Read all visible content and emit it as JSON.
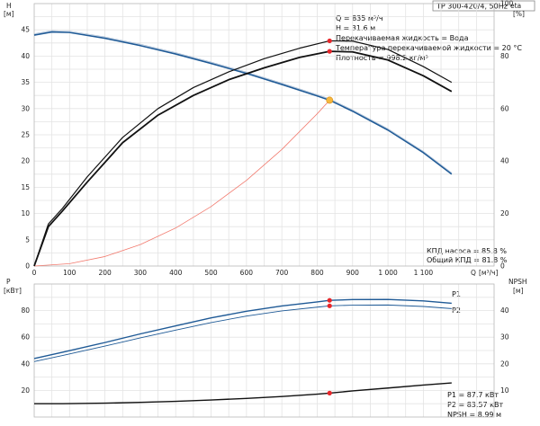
{
  "chart_data": [
    {
      "type": "line",
      "title": "TP 300-420/4, 50Hz",
      "info_lines": [
        "Q = 835 м³/ч",
        "H = 31.6 м",
        "Перекачиваемая жидкость = Вода",
        "Температура перекачиваемой жидкости = 20 °C",
        "Плотность = 998.2 кг/м³"
      ],
      "eff_labels": [
        "КПД насоса = 85.8 %",
        "Общий КПД = 81.8 %"
      ],
      "ylabel_left": "H",
      "yunit_left": "[м]",
      "ylabel_right": "eta",
      "yunit_right": "[%]",
      "xlabel": "Q",
      "xunit": "[м³/ч]",
      "xlim": [
        0,
        1300
      ],
      "ylim_left": [
        0,
        50
      ],
      "ylim_right": [
        0,
        100
      ],
      "x_ticks": [
        0,
        100,
        200,
        300,
        400,
        500,
        600,
        700,
        800,
        900,
        1000,
        1100
      ],
      "x_tick_labels": [
        "0",
        "100",
        "200",
        "300",
        "400",
        "500",
        "600",
        "700",
        "800",
        "900",
        "1 000",
        "1 100"
      ],
      "y_ticks_left": [
        0,
        5,
        10,
        15,
        20,
        25,
        30,
        35,
        40,
        45
      ],
      "y_ticks_right": [
        0,
        20,
        40,
        60,
        80,
        100
      ],
      "grid": true,
      "colors": {
        "head": "#1f5a96",
        "efficiency": "#111111",
        "system": "#f27a6e",
        "duty_point": "#f5b73d",
        "marker": "#e8262a"
      },
      "series": [
        {
          "axis": "left",
          "color": "#1f5a96",
          "width": 1.6,
          "x": [
            0,
            50,
            100,
            200,
            300,
            400,
            500,
            600,
            700,
            800,
            835,
            900,
            1000,
            1100,
            1180
          ],
          "y": [
            44.0,
            44.6,
            44.5,
            43.4,
            42.0,
            40.4,
            38.6,
            36.7,
            34.6,
            32.4,
            31.6,
            29.5,
            25.9,
            21.6,
            17.5
          ]
        },
        {
          "axis": "left",
          "color": "#f27a6e",
          "width": 0.8,
          "x": [
            0,
            100,
            200,
            300,
            400,
            500,
            600,
            700,
            800,
            835
          ],
          "y": [
            0,
            0.45,
            1.81,
            4.08,
            7.25,
            11.33,
            16.32,
            22.21,
            29.01,
            31.6
          ]
        },
        {
          "axis": "right",
          "color": "#111111",
          "width": 1.2,
          "x": [
            0,
            40,
            80,
            150,
            250,
            350,
            450,
            550,
            650,
            750,
            835,
            900,
            1000,
            1100,
            1180
          ],
          "y": [
            0,
            16,
            22,
            34,
            49,
            60,
            68,
            74,
            79,
            83,
            85.8,
            85.7,
            82.5,
            76,
            70
          ]
        },
        {
          "axis": "right",
          "color": "#111111",
          "width": 1.8,
          "x": [
            0,
            40,
            80,
            150,
            250,
            350,
            450,
            550,
            650,
            750,
            835,
            900,
            1000,
            1100,
            1180
          ],
          "y": [
            0,
            15,
            21,
            32,
            47,
            57.5,
            65,
            71,
            75.5,
            79.5,
            81.8,
            81.6,
            78.5,
            72.5,
            66.5
          ]
        }
      ],
      "markers": [
        {
          "axis": "left",
          "x": 835,
          "y": 31.6,
          "color": "#f5b73d",
          "r": 3.6
        },
        {
          "axis": "right",
          "x": 835,
          "y": 85.8,
          "color": "#e8262a",
          "r": 2.6
        },
        {
          "axis": "right",
          "x": 835,
          "y": 81.8,
          "color": "#e8262a",
          "r": 2.6
        }
      ]
    },
    {
      "type": "line",
      "ylabel_left": "P",
      "yunit_left": "[кВт]",
      "ylabel_right": "NPSH",
      "yunit_right": "[м]",
      "xlim": [
        0,
        1300
      ],
      "ylim_left": [
        0,
        100
      ],
      "ylim_right": [
        0,
        50
      ],
      "x_ticks": [
        0,
        100,
        200,
        300,
        400,
        500,
        600,
        700,
        800,
        900,
        1000,
        1100
      ],
      "y_ticks_left": [
        20,
        40,
        60,
        80
      ],
      "y_ticks_right": [
        10,
        20,
        30,
        40
      ],
      "grid": true,
      "series": [
        {
          "name": "P1",
          "axis": "left",
          "color": "#1f5a96",
          "width": 1.4,
          "x": [
            0,
            80,
            200,
            300,
            400,
            500,
            600,
            700,
            800,
            835,
            900,
            1000,
            1100,
            1180
          ],
          "y": [
            44.0,
            48.7,
            56,
            62.5,
            68.5,
            74.5,
            79.5,
            83.5,
            86.5,
            87.7,
            88.3,
            88.4,
            87.3,
            85.5
          ]
        },
        {
          "name": "P2",
          "axis": "left",
          "color": "#1f5a96",
          "width": 0.9,
          "x": [
            0,
            80,
            200,
            300,
            400,
            500,
            600,
            700,
            800,
            835,
            900,
            1000,
            1100,
            1180
          ],
          "y": [
            41.7,
            46.2,
            53.3,
            59.5,
            65.3,
            71,
            75.9,
            79.8,
            82.6,
            83.57,
            84.1,
            84.2,
            83.1,
            81.5
          ]
        },
        {
          "name": "",
          "axis": "right",
          "color": "#111111",
          "width": 1.4,
          "x": [
            0,
            80,
            200,
            300,
            400,
            500,
            600,
            700,
            800,
            835,
            900,
            1000,
            1100,
            1180
          ],
          "y": [
            5.0,
            5.0,
            5.2,
            5.5,
            5.9,
            6.4,
            7.0,
            7.7,
            8.6,
            8.99,
            9.8,
            10.9,
            12.0,
            12.8
          ]
        }
      ],
      "series_labels": [
        "P1",
        "P2"
      ],
      "markers": [
        {
          "axis": "left",
          "x": 835,
          "y": 87.7,
          "color": "#e8262a",
          "r": 2.6
        },
        {
          "axis": "left",
          "x": 835,
          "y": 83.57,
          "color": "#e8262a",
          "r": 2.6
        },
        {
          "axis": "right",
          "x": 835,
          "y": 8.99,
          "color": "#e8262a",
          "r": 2.6
        }
      ],
      "readouts": [
        "P1 = 87.7 кВт",
        "P2 = 83.57 кВт",
        "NPSH = 8.99 м"
      ]
    }
  ]
}
